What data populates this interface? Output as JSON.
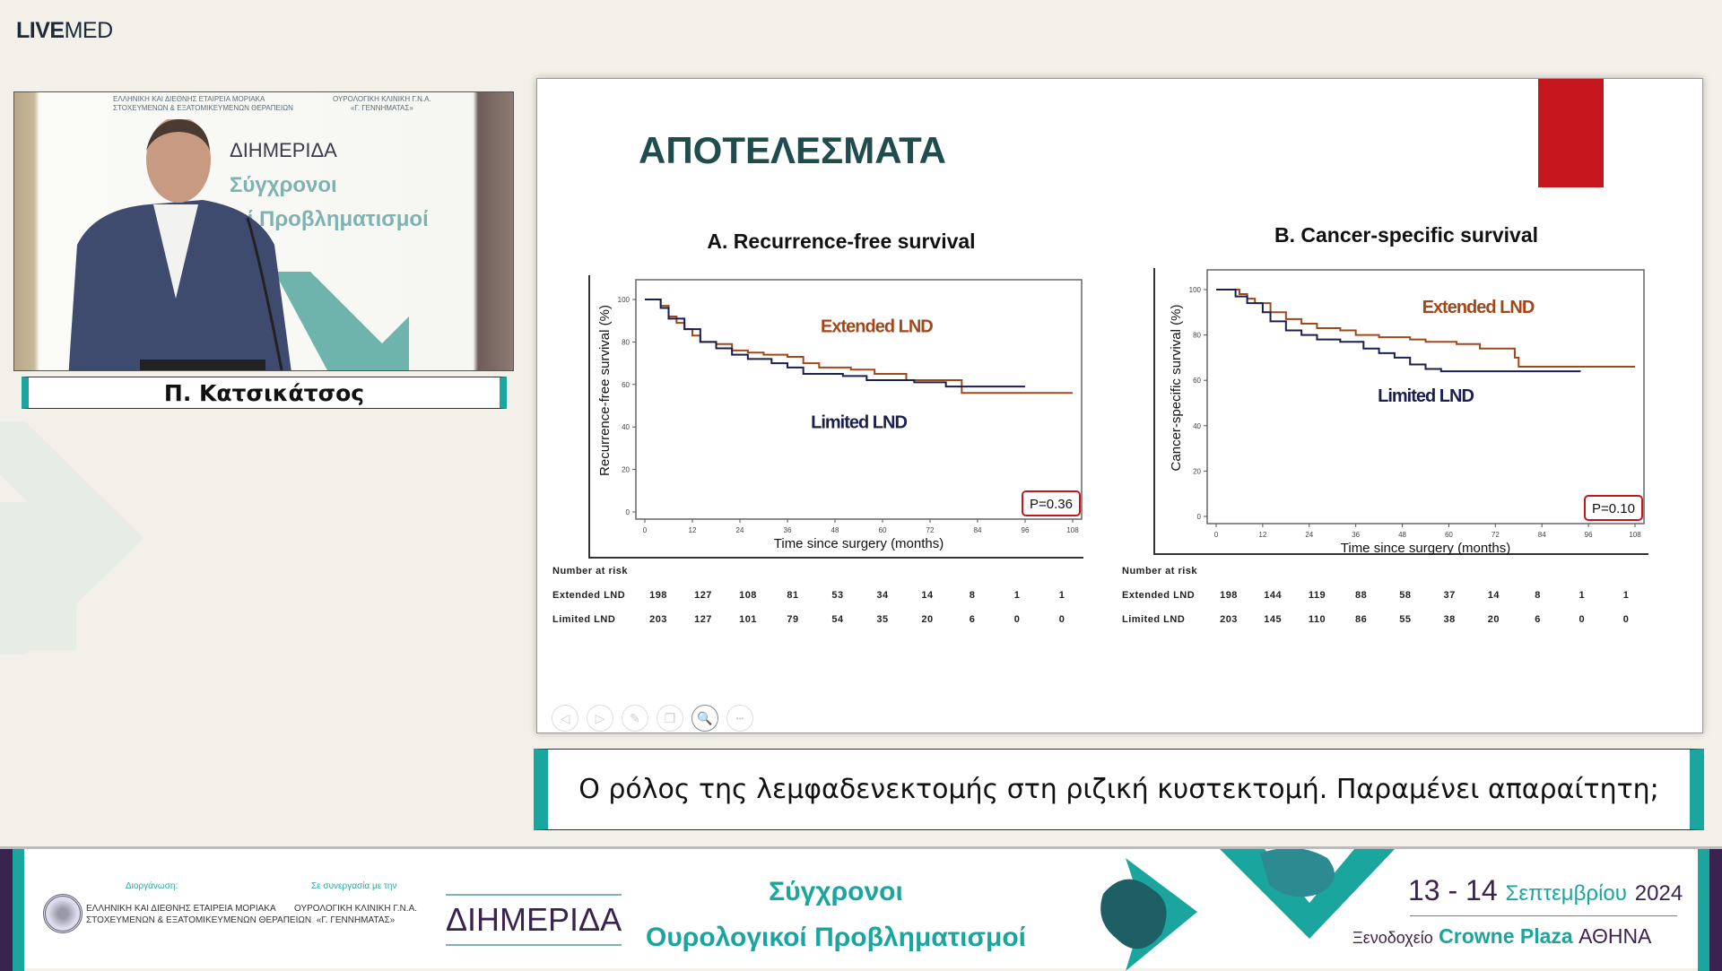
{
  "logo": {
    "bold": "LIVE",
    "rest": "MED"
  },
  "video": {
    "banner_org_line1": "ΕΛΛΗΝΙΚΗ ΚΑΙ ΔΙΕΘΝΗΣ ΕΤΑΙΡΕΙΑ ΜΟΡΙΑΚΑ",
    "banner_org_line2": "ΣΤΟΧΕΥΜΕΝΩΝ & ΕΞΑΤΟΜΙΚΕΥΜΕΝΩΝ ΘΕΡΑΠΕΙΩΝ",
    "banner_clinic_line1": "ΟΥΡΟΛΟΓΙΚΗ ΚΛΙΝΙΚΗ Γ.Ν.Α.",
    "banner_clinic_line2": "«Γ. ΓΕΝΝΗΜΑΤΑΣ»",
    "banner_title": "ΔΙΗΜΕΡΙΔΑ",
    "banner_sub1": "Σύγχρονοι",
    "banner_sub2": "οί Προβληματισμοί"
  },
  "speaker_name": "Π. Κατσικάτσος",
  "slide": {
    "title": "ΑΠΟΤΕΛΕΣΜΑΤΑ",
    "accent_color": "#c4161c",
    "toolbar": [
      {
        "icon": "previous-icon",
        "glyph": "◁"
      },
      {
        "icon": "next-icon",
        "glyph": "▷"
      },
      {
        "icon": "pen-icon",
        "glyph": "✎"
      },
      {
        "icon": "slides-icon",
        "glyph": "❐"
      },
      {
        "icon": "zoom-icon",
        "glyph": "🔍"
      },
      {
        "icon": "more-icon",
        "glyph": "•••"
      }
    ]
  },
  "chart_data": [
    {
      "type": "line",
      "title": "A. Recurrence-free survival",
      "xlabel": "Time since surgery (months)",
      "ylabel": "Recurrence-free survival  (%)",
      "xticks": [
        0,
        12,
        24,
        36,
        48,
        60,
        72,
        84,
        96,
        108
      ],
      "yticks": [
        0,
        20,
        40,
        60,
        80,
        100
      ],
      "xlim": [
        0,
        108
      ],
      "ylim": [
        0,
        100
      ],
      "annotation": "P=0.36",
      "series": [
        {
          "name": "Extended LND",
          "color": "#a0481a",
          "points": [
            [
              0,
              100
            ],
            [
              2,
              100
            ],
            [
              4,
              97
            ],
            [
              6,
              92
            ],
            [
              8,
              89
            ],
            [
              10,
              86
            ],
            [
              12,
              83
            ],
            [
              14,
              80
            ],
            [
              18,
              79
            ],
            [
              22,
              76
            ],
            [
              26,
              75
            ],
            [
              30,
              74
            ],
            [
              36,
              73
            ],
            [
              40,
              70
            ],
            [
              44,
              68
            ],
            [
              52,
              67
            ],
            [
              58,
              65
            ],
            [
              66,
              62
            ],
            [
              80,
              62
            ],
            [
              80,
              56
            ],
            [
              108,
              56
            ]
          ]
        },
        {
          "name": "Limited LND",
          "color": "#1a1f4f",
          "points": [
            [
              0,
              100
            ],
            [
              2,
              100
            ],
            [
              4,
              96
            ],
            [
              6,
              91
            ],
            [
              10,
              86
            ],
            [
              14,
              80
            ],
            [
              18,
              77
            ],
            [
              22,
              74
            ],
            [
              26,
              72
            ],
            [
              32,
              70
            ],
            [
              36,
              68
            ],
            [
              40,
              65
            ],
            [
              50,
              64
            ],
            [
              56,
              62
            ],
            [
              68,
              61
            ],
            [
              76,
              59
            ],
            [
              96,
              59
            ]
          ]
        }
      ],
      "risk_table": {
        "header": "Number at risk",
        "rows": [
          {
            "label": "Extended LND",
            "values": [
              198,
              127,
              108,
              81,
              53,
              34,
              14,
              8,
              1,
              1
            ]
          },
          {
            "label": "Limited LND",
            "values": [
              203,
              127,
              101,
              79,
              54,
              35,
              20,
              6,
              0,
              0
            ]
          }
        ]
      }
    },
    {
      "type": "line",
      "title": "B. Cancer-specific survival",
      "xlabel": "Time since surgery (months)",
      "ylabel": "Cancer-specific survival  (%)",
      "xticks": [
        0,
        12,
        24,
        36,
        48,
        60,
        72,
        84,
        96,
        108
      ],
      "yticks": [
        0,
        20,
        40,
        60,
        80,
        100
      ],
      "xlim": [
        0,
        108
      ],
      "ylim": [
        0,
        100
      ],
      "annotation": "P=0.10",
      "series": [
        {
          "name": "Extended LND",
          "color": "#a0481a",
          "points": [
            [
              0,
              100
            ],
            [
              4,
              100
            ],
            [
              6,
              98
            ],
            [
              8,
              96
            ],
            [
              10,
              94
            ],
            [
              14,
              90
            ],
            [
              18,
              87
            ],
            [
              22,
              85
            ],
            [
              26,
              83
            ],
            [
              32,
              82
            ],
            [
              36,
              80
            ],
            [
              42,
              79
            ],
            [
              50,
              78
            ],
            [
              54,
              77
            ],
            [
              62,
              76
            ],
            [
              68,
              74
            ],
            [
              76,
              74
            ],
            [
              77,
              70
            ],
            [
              78,
              66
            ],
            [
              108,
              66
            ]
          ]
        },
        {
          "name": "Limited LND",
          "color": "#1a1f4f",
          "points": [
            [
              0,
              100
            ],
            [
              4,
              100
            ],
            [
              5,
              97
            ],
            [
              8,
              94
            ],
            [
              12,
              90
            ],
            [
              14,
              86
            ],
            [
              18,
              82
            ],
            [
              22,
              80
            ],
            [
              26,
              78
            ],
            [
              32,
              77
            ],
            [
              38,
              74
            ],
            [
              42,
              72
            ],
            [
              46,
              70
            ],
            [
              50,
              67
            ],
            [
              54,
              65
            ],
            [
              58,
              64
            ],
            [
              94,
              64
            ]
          ]
        }
      ],
      "risk_table": {
        "header": "Number at risk",
        "rows": [
          {
            "label": "Extended LND",
            "values": [
              198,
              144,
              119,
              88,
              58,
              37,
              14,
              8,
              1,
              1
            ]
          },
          {
            "label": "Limited LND",
            "values": [
              203,
              145,
              110,
              86,
              55,
              38,
              20,
              6,
              0,
              0
            ]
          }
        ]
      }
    }
  ],
  "subtitle": "Ο ρόλος της λεμφαδενεκτομής στη ριζική κυστεκτομή. Παραμένει απαραίτητη;",
  "footer": {
    "organizer_label": "Διοργάνωση:",
    "organizer_line1": "ΕΛΛΗΝΙΚΗ ΚΑΙ ΔΙΕΘΝΗΣ ΕΤΑΙΡΕΙΑ ΜΟΡΙΑΚΑ",
    "organizer_line2": "ΣΤΟΧΕΥΜΕΝΩΝ & ΕΞΑΤΟΜΙΚΕΥΜΕΝΩΝ ΘΕΡΑΠΕΙΩΝ",
    "partner_label": "Σε συνεργασία με την",
    "partner_line1": "ΟΥΡΟΛΟΓΙΚΗ ΚΛΙΝΙΚΗ Γ.Ν.Α.",
    "partner_line2": "«Γ. ΓΕΝΝΗΜΑΤΑΣ»",
    "event_type": "ΔΙΗΜΕΡΙΔΑ",
    "event_line1": "Σύγχρονοι",
    "event_line2": "Ουρολογικοί Προβληματισμοί",
    "date_days": "13 - 14",
    "date_month": "Σεπτεμβρίου",
    "date_year": "2024",
    "venue_prefix": "Ξενοδοχείο",
    "venue_name": "Crowne Plaza",
    "venue_city": "ΑΘΗΝΑ",
    "brand_teal": "#1aa59e",
    "brand_purple": "#3b2350"
  }
}
